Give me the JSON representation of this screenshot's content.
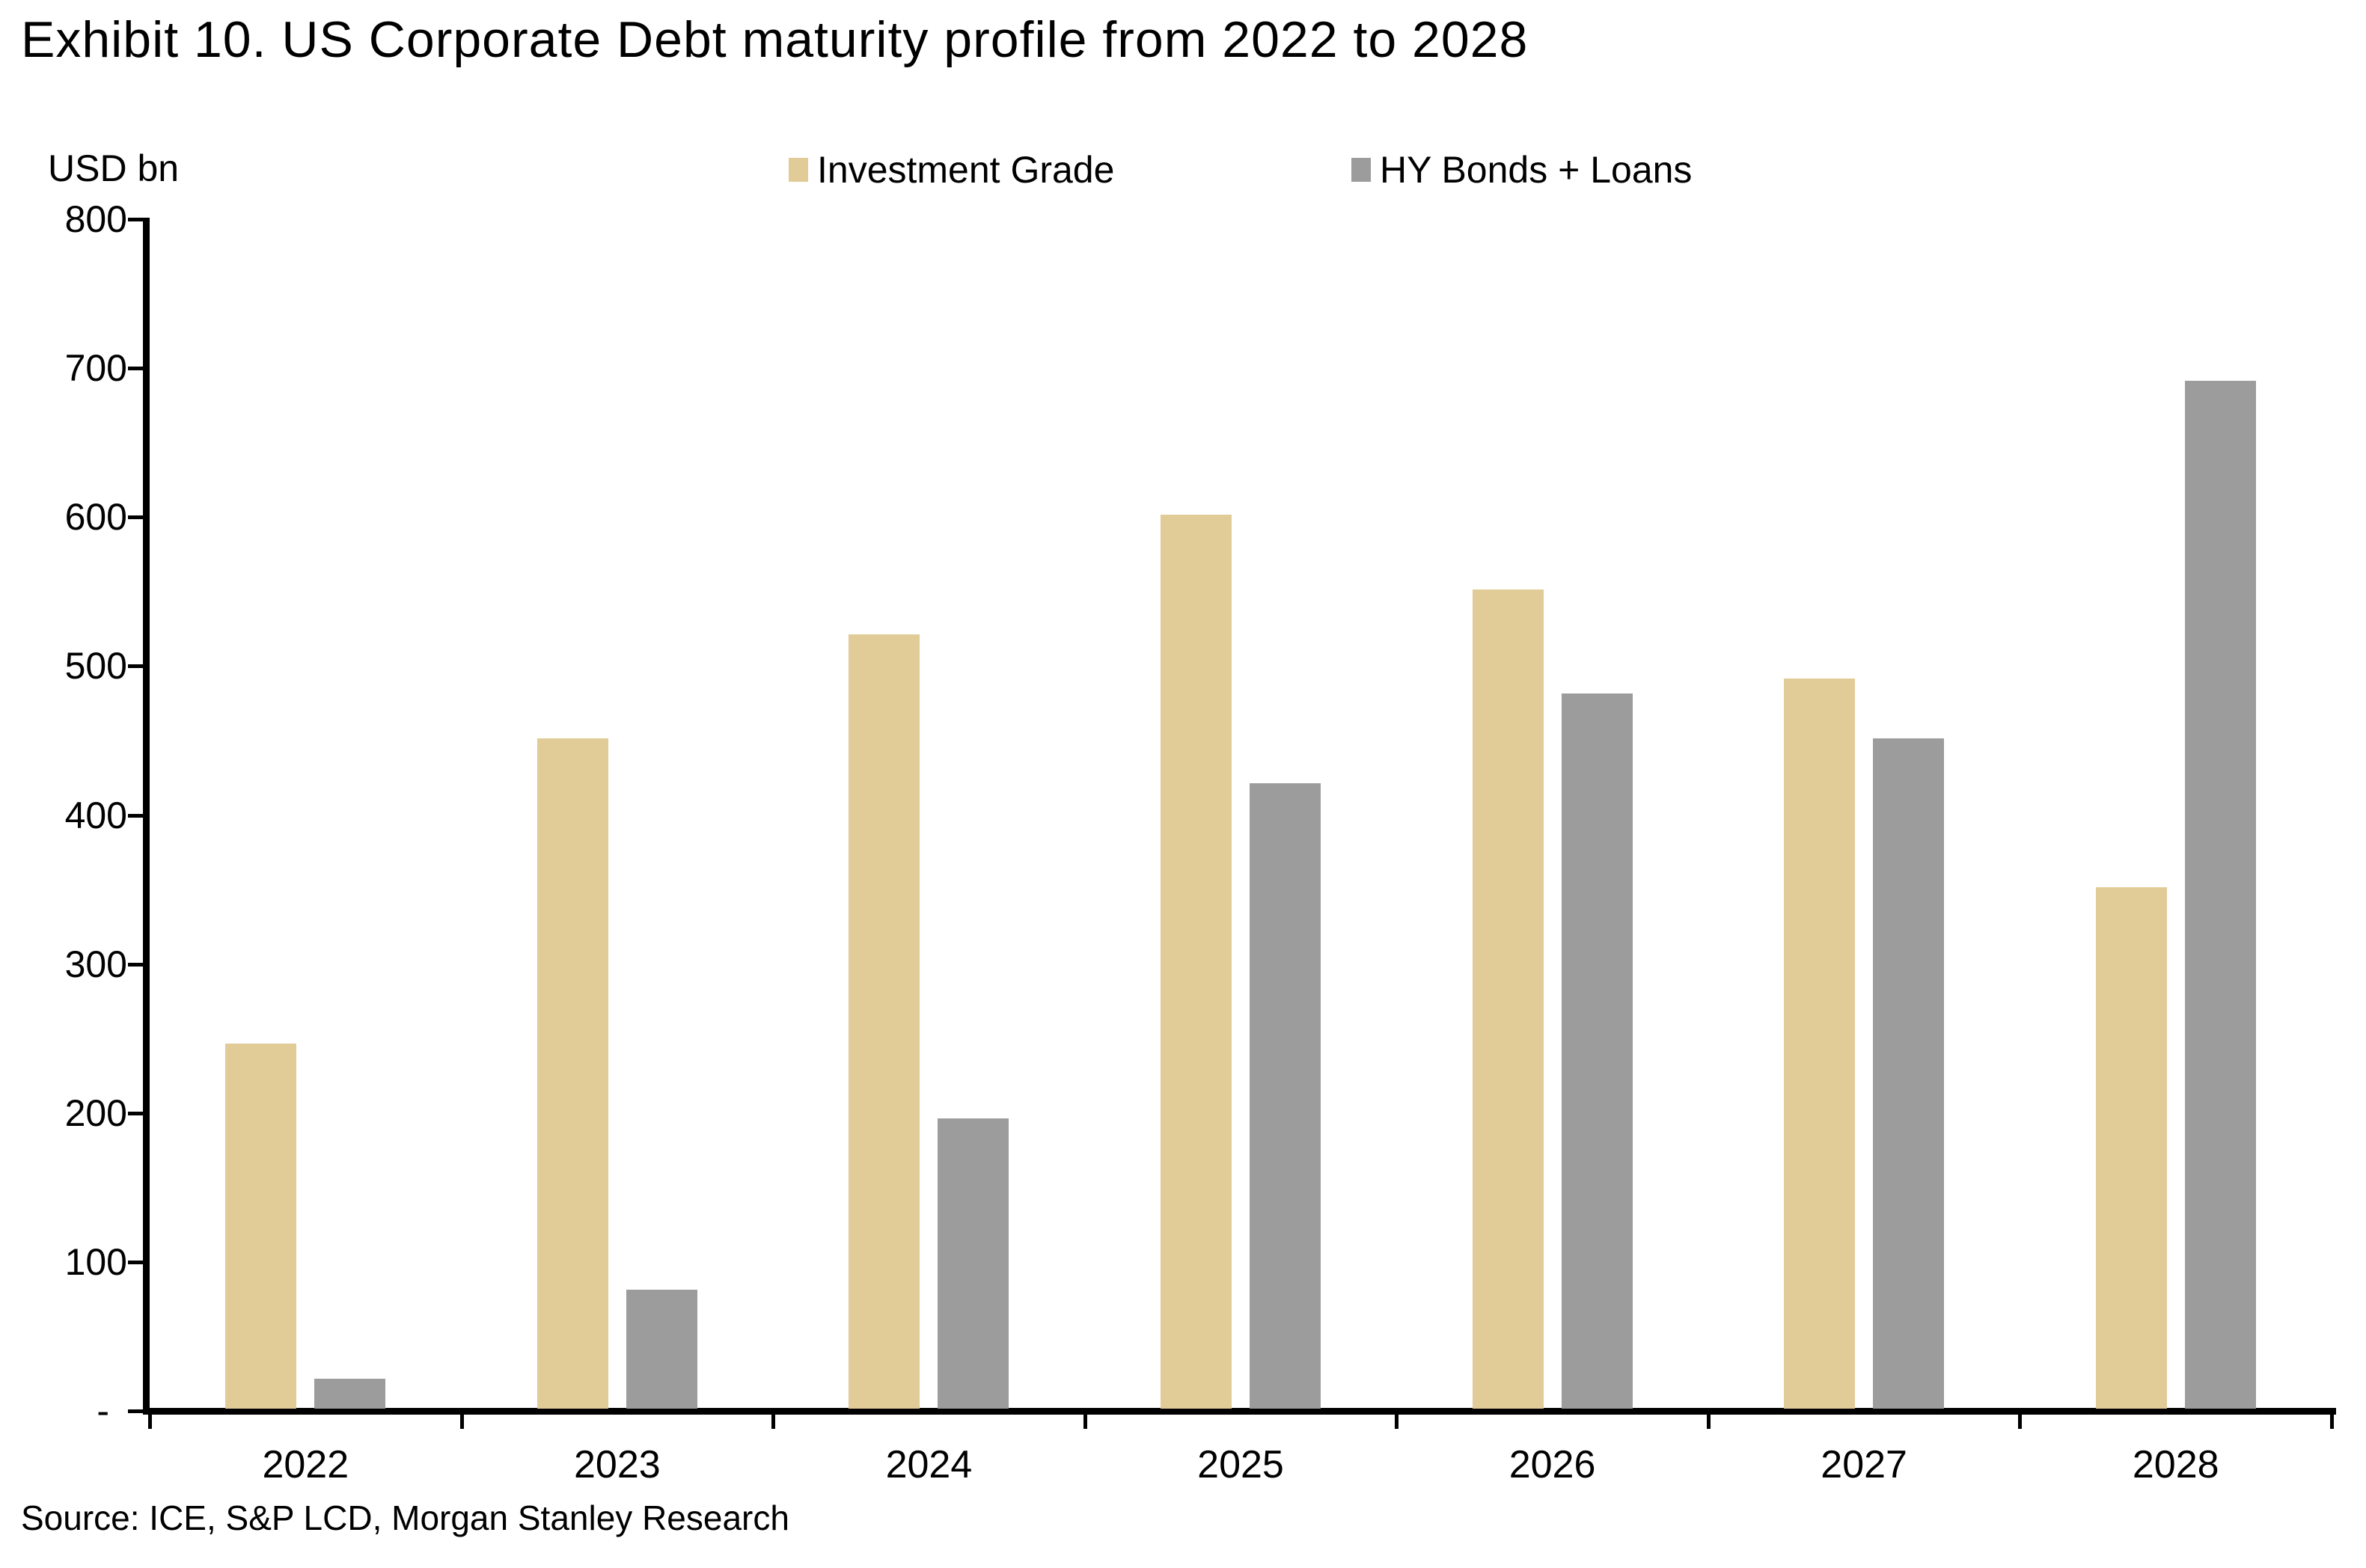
{
  "title": "Exhibit 10. US Corporate Debt maturity profile from 2022 to 2028",
  "y_axis_label": "USD bn",
  "source": "Source: ICE, S&P LCD, Morgan Stanley Research",
  "legend": {
    "items": [
      {
        "label": "Investment Grade",
        "color": "#E1CB97"
      },
      {
        "label": "HY Bonds + Loans",
        "color": "#9C9C9C"
      }
    ]
  },
  "chart_data": {
    "type": "bar",
    "title": "Exhibit 10. US Corporate Debt maturity profile from 2022 to 2028",
    "categories": [
      "2022",
      "2023",
      "2024",
      "2025",
      "2026",
      "2027",
      "2028"
    ],
    "series": [
      {
        "name": "Investment Grade",
        "color": "#E1CB97",
        "values": [
          245,
          450,
          520,
          600,
          550,
          490,
          350
        ]
      },
      {
        "name": "HY Bonds + Loans",
        "color": "#9C9C9C",
        "values": [
          20,
          80,
          195,
          420,
          480,
          450,
          690
        ]
      }
    ],
    "xlabel": "",
    "ylabel": "USD bn",
    "ylim": [
      0,
      800
    ],
    "y_tick_step": 100,
    "y_tick_labels": [
      "800",
      "700",
      "600",
      "500",
      "400",
      "300",
      "200",
      "100",
      "-"
    ],
    "grid": false,
    "legend_position": "top-center",
    "axis_color": "#000000"
  }
}
